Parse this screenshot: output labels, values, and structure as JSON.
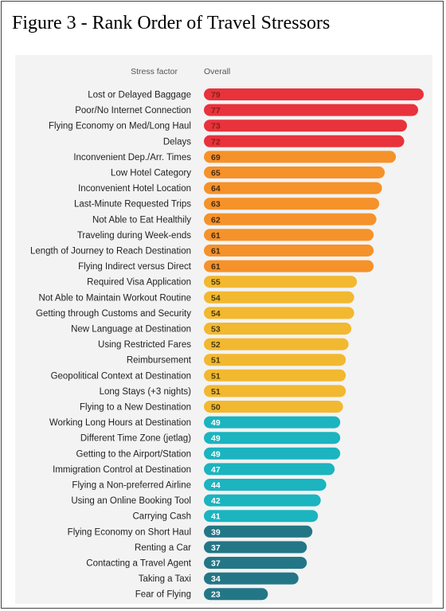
{
  "figure_title": "Figure 3 - Rank Order of Travel Stressors",
  "chart_data": {
    "type": "bar",
    "orientation": "horizontal",
    "column_headers": {
      "categories": "Stress factor",
      "values": "Overall"
    },
    "categories": [
      "Lost or Delayed Baggage",
      "Poor/No Internet Connection",
      "Flying Economy on Med/Long Haul",
      "Delays",
      "Inconvenient Dep./Arr. Times",
      "Low Hotel Category",
      "Inconvenient Hotel Location",
      "Last-Minute Requested Trips",
      "Not Able to Eat Healthily",
      "Traveling during Week-ends",
      "Length of Journey to Reach Destination",
      "Flying Indirect versus Direct",
      "Required Visa Application",
      "Not Able to Maintain Workout Routine",
      "Getting through Customs and Security",
      "New Language at Destination",
      "Using Restricted Fares",
      "Reimbursement",
      "Geopolitical Context at Destination",
      "Long Stays (+3 nights)",
      "Flying to a New Destination",
      "Working Long Hours at Destination",
      "Different Time Zone (jetlag)",
      "Getting to the Airport/Station",
      "Immigration Control at Destination",
      "Flying a Non-preferred Airline",
      "Using an Online Booking Tool",
      "Carrying Cash",
      "Flying Economy on Short Haul",
      "Renting a Car",
      "Contacting a Travel Agent",
      "Taking a Taxi",
      "Fear of Flying"
    ],
    "values": [
      79,
      77,
      73,
      72,
      69,
      65,
      64,
      63,
      62,
      61,
      61,
      61,
      55,
      54,
      54,
      53,
      52,
      51,
      51,
      51,
      50,
      49,
      49,
      49,
      47,
      44,
      42,
      41,
      39,
      37,
      37,
      34,
      23
    ],
    "xlim": [
      0,
      79
    ],
    "grid": false,
    "legend": "none",
    "color_groups": [
      {
        "color": "#e8323c",
        "text_color": "#8a1f14",
        "min_value": 70
      },
      {
        "color": "#f5922a",
        "text_color": "#4a2a10",
        "min_value": 60
      },
      {
        "color": "#f2b830",
        "text_color": "#4a3a10",
        "min_value": 50
      },
      {
        "color": "#1bb4bf",
        "text_color": "#ffffff",
        "min_value": 40
      },
      {
        "color": "#237686",
        "text_color": "#ffffff",
        "min_value": 0
      }
    ]
  }
}
